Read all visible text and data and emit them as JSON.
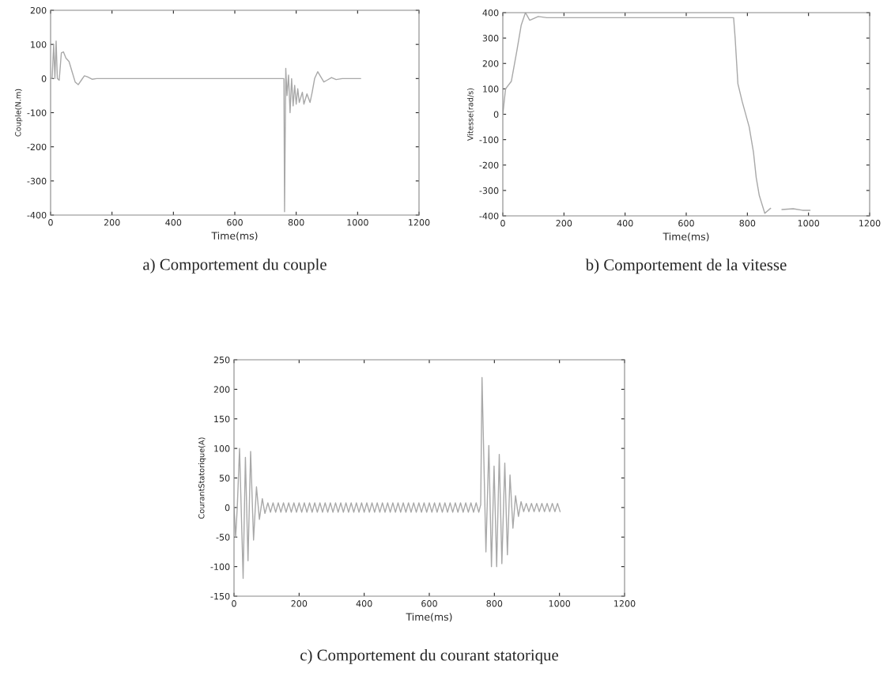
{
  "chart_data": [
    {
      "type": "line",
      "title": "a) Comportement du couple",
      "xlabel": "Time(ms)",
      "ylabel": "Couple(N.m)",
      "xlim": [
        0,
        1200
      ],
      "ylim": [
        -400,
        200
      ],
      "xticks": [
        0,
        200,
        400,
        600,
        800,
        1000,
        1200
      ],
      "yticks": [
        -400,
        -300,
        -200,
        -100,
        0,
        100,
        200
      ],
      "series": [
        {
          "color": "#a8a8a8",
          "x": [
            0,
            5,
            10,
            14,
            18,
            22,
            28,
            35,
            42,
            50,
            60,
            70,
            80,
            90,
            100,
            110,
            120,
            135,
            150,
            760,
            762,
            766,
            770,
            775,
            780,
            785,
            790,
            795,
            800,
            805,
            810,
            820,
            825,
            835,
            845,
            852,
            860,
            870,
            880,
            890,
            900,
            915,
            930,
            950,
            1010
          ],
          "values": [
            0,
            0,
            100,
            0,
            110,
            0,
            -5,
            75,
            78,
            60,
            50,
            20,
            -10,
            -18,
            -5,
            8,
            5,
            -2,
            0,
            0,
            -390,
            30,
            -50,
            10,
            -100,
            0,
            -80,
            -20,
            -75,
            -30,
            -70,
            -40,
            -75,
            -45,
            -70,
            -40,
            0,
            20,
            5,
            -10,
            -5,
            3,
            -3,
            0,
            0
          ]
        }
      ]
    },
    {
      "type": "line",
      "title": "b) Comportement de la vitesse",
      "xlabel": "Time(ms)",
      "ylabel": "Vitesse(rad/s)",
      "xlim": [
        0,
        1200
      ],
      "ylim": [
        -400,
        400
      ],
      "xticks": [
        0,
        200,
        400,
        600,
        800,
        1000,
        1200
      ],
      "yticks": [
        -400,
        -300,
        -200,
        -100,
        0,
        100,
        200,
        300,
        400
      ],
      "series": [
        {
          "color": "#a8a8a8",
          "x": [
            0,
            9,
            28,
            46,
            60,
            74,
            88,
            116,
            144,
            755,
            760,
            765,
            769,
            783,
            806,
            820,
            829,
            839,
            857,
            876,
            895,
            913,
            950,
            980,
            1005
          ],
          "values": [
            0,
            100,
            130,
            250,
            350,
            400,
            370,
            385,
            380,
            380,
            300,
            200,
            120,
            50,
            -50,
            -150,
            -250,
            -320,
            -390,
            -370,
            null,
            -375,
            -372,
            -378,
            -378
          ]
        }
      ]
    },
    {
      "type": "line",
      "title": "c) Comportement du courant statorique",
      "xlabel": "Time(ms)",
      "ylabel": "CourantStatorique(A)",
      "xlim": [
        0,
        1200
      ],
      "ylim": [
        -150,
        250
      ],
      "xticks": [
        0,
        200,
        400,
        600,
        800,
        1000,
        1200
      ],
      "yticks": [
        -150,
        -100,
        -50,
        0,
        50,
        100,
        150,
        200,
        250
      ],
      "series": [
        {
          "color": "#a8a8a8",
          "x": [
            0,
            5,
            10,
            17,
            28,
            35,
            43,
            51,
            60,
            69,
            78,
            87,
            95,
            104,
            112,
            120,
            128,
            136,
            144,
            152,
            160,
            168,
            176,
            184,
            192,
            200,
            208,
            216,
            224,
            232,
            240,
            248,
            256,
            264,
            272,
            280,
            288,
            296,
            304,
            312,
            320,
            328,
            336,
            344,
            352,
            360,
            368,
            376,
            384,
            392,
            400,
            408,
            416,
            424,
            432,
            440,
            448,
            456,
            464,
            472,
            480,
            488,
            496,
            504,
            512,
            520,
            528,
            536,
            544,
            552,
            560,
            568,
            576,
            584,
            592,
            600,
            608,
            616,
            624,
            632,
            640,
            648,
            656,
            664,
            672,
            680,
            688,
            696,
            704,
            712,
            720,
            728,
            736,
            744,
            752,
            758,
            762,
            774,
            783,
            791,
            799,
            807,
            815,
            823,
            832,
            840,
            848,
            857,
            865,
            874,
            882,
            890,
            898,
            906,
            914,
            922,
            930,
            938,
            946,
            954,
            962,
            970,
            978,
            986,
            994,
            1002
          ],
          "values": [
            0,
            -50,
            0,
            100,
            -120,
            85,
            -90,
            95,
            -55,
            35,
            -20,
            15,
            -10,
            8,
            -8,
            8,
            -8,
            8,
            -8,
            8,
            -8,
            8,
            -8,
            8,
            -8,
            8,
            -8,
            8,
            -8,
            8,
            -8,
            8,
            -8,
            8,
            -8,
            8,
            -8,
            8,
            -8,
            8,
            -8,
            8,
            -8,
            8,
            -8,
            8,
            -8,
            8,
            -8,
            8,
            -8,
            8,
            -8,
            8,
            -8,
            8,
            -8,
            8,
            -8,
            8,
            -8,
            8,
            -8,
            8,
            -8,
            8,
            -8,
            8,
            -8,
            8,
            -8,
            8,
            -8,
            8,
            -8,
            8,
            -8,
            8,
            -8,
            8,
            -8,
            8,
            -8,
            8,
            -8,
            8,
            -8,
            8,
            -8,
            8,
            -8,
            8,
            -8,
            8,
            -8,
            5,
            220,
            -75,
            105,
            -100,
            70,
            -100,
            90,
            -95,
            75,
            -80,
            55,
            -35,
            20,
            -15,
            10,
            -7,
            7,
            -7,
            7,
            -7,
            7,
            -7,
            7,
            -7,
            7,
            -7,
            7,
            -7,
            7,
            -7
          ]
        }
      ]
    }
  ]
}
